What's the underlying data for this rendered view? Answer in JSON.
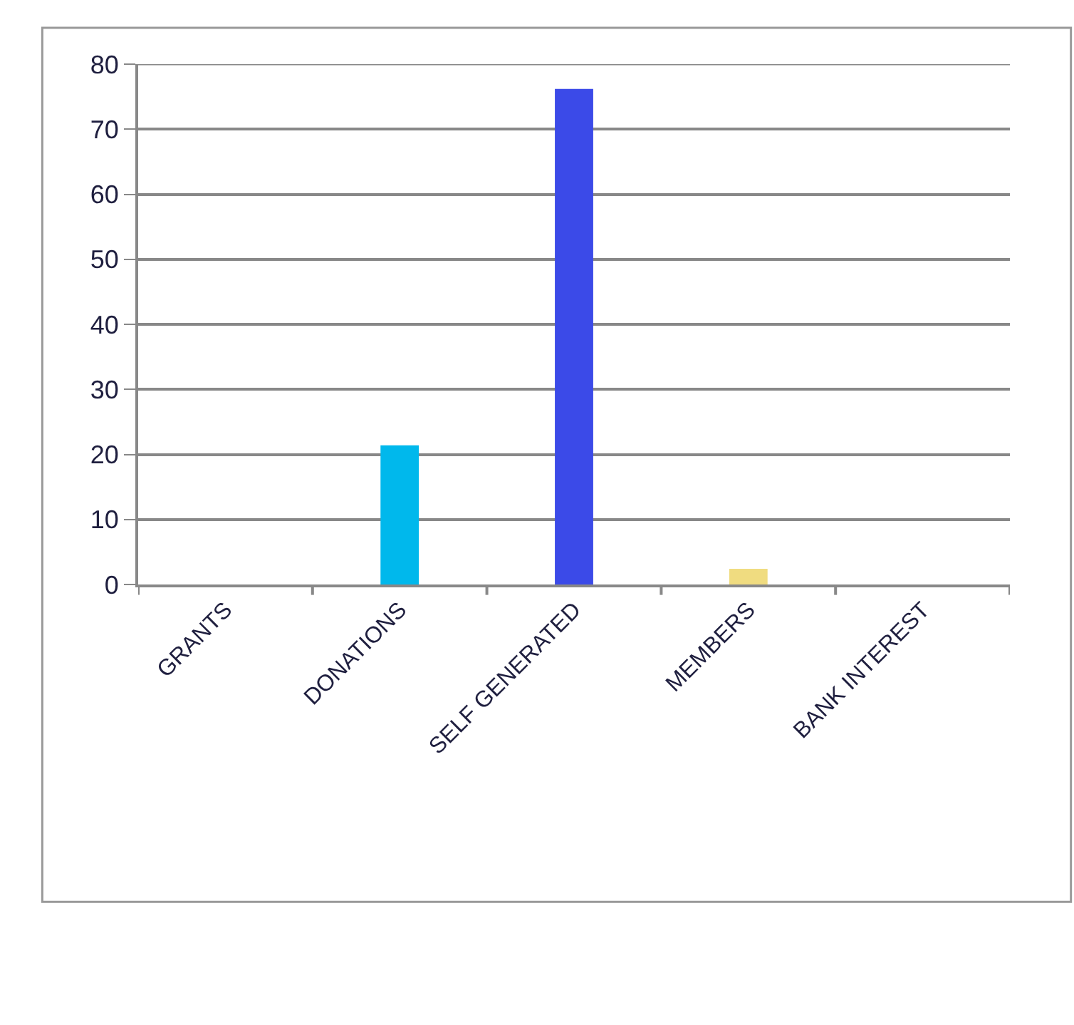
{
  "chart_data": {
    "type": "bar",
    "categories": [
      "GRANTS",
      "DONATIONS",
      "SELF GENERATED",
      "MEMBERS",
      "BANK INTEREST"
    ],
    "values": [
      0,
      21.4,
      76.2,
      2.4,
      0
    ],
    "colors": [
      "#4f81bd",
      "#00b8ec",
      "#3b4ae8",
      "#f0dc80",
      "#9bbb59"
    ],
    "ylim": [
      0,
      80
    ],
    "yticks": [
      0,
      10,
      20,
      30,
      40,
      50,
      60,
      70,
      80
    ],
    "grid": "y"
  }
}
